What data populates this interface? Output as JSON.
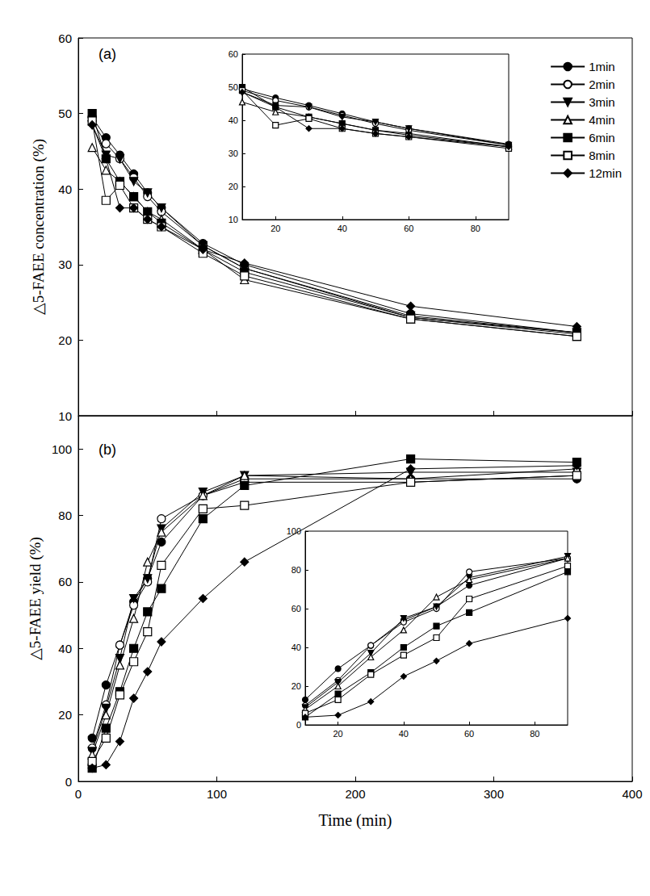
{
  "chart_data": [
    {
      "type": "line",
      "annotations": [
        "(a)"
      ],
      "ylabel": "△5-FAEE concentration (%)",
      "x": [
        10,
        20,
        30,
        40,
        50,
        60,
        90,
        120,
        240,
        360
      ],
      "xlim": [
        0,
        400
      ],
      "xticks": [
        0,
        100,
        200,
        300,
        400
      ],
      "ylim": [
        10,
        60
      ],
      "yticks": [
        10,
        20,
        30,
        40,
        50,
        60
      ],
      "grid": false,
      "legend": "upper right",
      "tick_labels": "y",
      "series": [
        {
          "name": "1min",
          "color": "#000000",
          "marker": "circle",
          "values": [
            49.5,
            46.8,
            44.5,
            42,
            39.5,
            37.5,
            32.8,
            30,
            23.5,
            21
          ]
        },
        {
          "name": "2min",
          "color": "#000000",
          "marker": "circle_open",
          "values": [
            49,
            46,
            44,
            41.5,
            39,
            37,
            32.5,
            29.5,
            23,
            20.8
          ]
        },
        {
          "name": "3min",
          "color": "#000000",
          "marker": "triangle_down",
          "values": [
            48.5,
            44.5,
            44,
            41,
            39.5,
            37.5,
            32.5,
            29.5,
            23.2,
            21
          ]
        },
        {
          "name": "4min",
          "color": "#000000",
          "marker": "triangle_open",
          "values": [
            45.5,
            42.5,
            41,
            39,
            37,
            36,
            32,
            28,
            22.8,
            20.5
          ]
        },
        {
          "name": "6min",
          "color": "#000000",
          "marker": "square",
          "values": [
            50,
            44,
            41,
            39,
            37,
            35.5,
            32,
            29,
            23,
            21
          ]
        },
        {
          "name": "8min",
          "color": "#000000",
          "marker": "square_open",
          "values": [
            49,
            38.5,
            40.5,
            37.5,
            36,
            35,
            31.5,
            28.5,
            22.8,
            20.5
          ]
        },
        {
          "name": "12min",
          "color": "#000000",
          "marker": "diamond",
          "values": [
            48.5,
            44,
            37.5,
            37.5,
            36,
            35,
            32,
            30.2,
            24.5,
            21.8
          ]
        }
      ]
    },
    {
      "type": "line",
      "x": [
        10,
        20,
        30,
        40,
        50,
        60,
        90
      ],
      "xlim": [
        10,
        90
      ],
      "xticks": [
        20,
        40,
        60,
        80
      ],
      "ylim": [
        10,
        60
      ],
      "yticks": [
        10,
        20,
        30,
        40,
        50,
        60
      ],
      "grid": false,
      "series": [
        {
          "name": "1min",
          "color": "#000000",
          "marker": "circle",
          "values": [
            49.5,
            46.8,
            44.5,
            42,
            39.5,
            37.5,
            32.8
          ]
        },
        {
          "name": "2min",
          "color": "#000000",
          "marker": "circle_open",
          "values": [
            49,
            46,
            44,
            41.5,
            39,
            37,
            32.5
          ]
        },
        {
          "name": "3min",
          "color": "#000000",
          "marker": "triangle_down",
          "values": [
            48.5,
            44.5,
            44,
            41,
            39.5,
            37.5,
            32.5
          ]
        },
        {
          "name": "4min",
          "color": "#000000",
          "marker": "triangle_open",
          "values": [
            45.5,
            42.5,
            41,
            39,
            37,
            36,
            32
          ]
        },
        {
          "name": "6min",
          "color": "#000000",
          "marker": "square",
          "values": [
            50,
            44,
            41,
            39,
            37,
            35.5,
            32
          ]
        },
        {
          "name": "8min",
          "color": "#000000",
          "marker": "square_open",
          "values": [
            49,
            38.5,
            40.5,
            37.5,
            36,
            35,
            31.5
          ]
        },
        {
          "name": "12min",
          "color": "#000000",
          "marker": "diamond",
          "values": [
            48.5,
            44,
            37.5,
            37.5,
            36,
            35,
            32
          ]
        }
      ]
    },
    {
      "type": "line",
      "annotations": [
        "(b)"
      ],
      "xlabel": "Time (min)",
      "ylabel": "△5-FAEE yield (%)",
      "x": [
        10,
        20,
        30,
        40,
        50,
        60,
        90,
        120,
        240,
        360
      ],
      "xlim": [
        0,
        400
      ],
      "xticks": [
        0,
        100,
        200,
        300,
        400
      ],
      "ylim": [
        0,
        110
      ],
      "yticks": [
        0,
        20,
        40,
        60,
        80,
        100
      ],
      "grid": false,
      "series": [
        {
          "name": "1min",
          "color": "#000000",
          "marker": "circle",
          "values": [
            13,
            29,
            41,
            54,
            61,
            72,
            86,
            91,
            91,
            91
          ]
        },
        {
          "name": "2min",
          "color": "#000000",
          "marker": "circle_open",
          "values": [
            10,
            23,
            41,
            53,
            60,
            79,
            86,
            90,
            90,
            92
          ]
        },
        {
          "name": "3min",
          "color": "#000000",
          "marker": "triangle_down",
          "values": [
            9,
            22,
            37,
            55,
            61,
            76,
            87,
            92,
            93,
            93
          ]
        },
        {
          "name": "4min",
          "color": "#000000",
          "marker": "triangle_open",
          "values": [
            8,
            20,
            35,
            49,
            66,
            75,
            86,
            92,
            91,
            94
          ]
        },
        {
          "name": "6min",
          "color": "#000000",
          "marker": "square",
          "values": [
            4,
            16,
            27,
            40,
            51,
            58,
            79,
            89,
            97,
            96
          ]
        },
        {
          "name": "8min",
          "color": "#000000",
          "marker": "square_open",
          "values": [
            6,
            13,
            26,
            36,
            45,
            65,
            82,
            83,
            90,
            92
          ]
        },
        {
          "name": "12min",
          "color": "#000000",
          "marker": "diamond",
          "values": [
            4,
            5,
            12,
            25,
            33,
            42,
            55,
            66,
            94,
            95
          ]
        }
      ]
    },
    {
      "type": "line",
      "x": [
        10,
        20,
        30,
        40,
        50,
        60,
        90
      ],
      "xlim": [
        10,
        90
      ],
      "xticks": [
        20,
        40,
        60,
        80
      ],
      "ylim": [
        0,
        100
      ],
      "yticks": [
        0,
        20,
        40,
        60,
        80,
        100
      ],
      "grid": false,
      "series": [
        {
          "name": "1min",
          "color": "#000000",
          "marker": "circle",
          "values": [
            13,
            29,
            41,
            54,
            61,
            72,
            86
          ]
        },
        {
          "name": "2min",
          "color": "#000000",
          "marker": "circle_open",
          "values": [
            10,
            23,
            41,
            53,
            60,
            79,
            86
          ]
        },
        {
          "name": "3min",
          "color": "#000000",
          "marker": "triangle_down",
          "values": [
            9,
            22,
            37,
            55,
            61,
            76,
            87
          ]
        },
        {
          "name": "4min",
          "color": "#000000",
          "marker": "triangle_open",
          "values": [
            8,
            20,
            35,
            49,
            66,
            75,
            86
          ]
        },
        {
          "name": "6min",
          "color": "#000000",
          "marker": "square",
          "values": [
            4,
            16,
            27,
            40,
            51,
            58,
            79
          ]
        },
        {
          "name": "8min",
          "color": "#000000",
          "marker": "square_open",
          "values": [
            6,
            13,
            26,
            36,
            45,
            65,
            82
          ]
        },
        {
          "name": "12min",
          "color": "#000000",
          "marker": "diamond",
          "values": [
            4,
            5,
            12,
            25,
            33,
            42,
            55
          ]
        }
      ]
    }
  ]
}
